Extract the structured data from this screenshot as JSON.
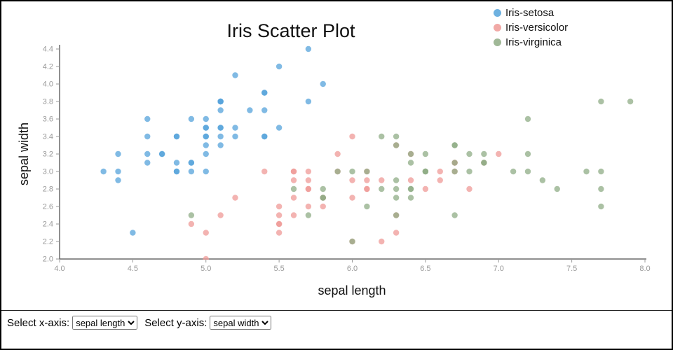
{
  "chart_data": {
    "type": "scatter",
    "title": "Iris Scatter Plot",
    "xlabel": "sepal length",
    "ylabel": "sepal width",
    "xlim": [
      4.0,
      8.0
    ],
    "ylim": [
      2.0,
      4.4
    ],
    "xticks": [
      4.0,
      4.5,
      5.0,
      5.5,
      6.0,
      6.5,
      7.0,
      7.5,
      8.0
    ],
    "yticks": [
      2.0,
      2.2,
      2.4,
      2.6,
      2.8,
      3.0,
      3.2,
      3.4,
      3.6,
      3.8,
      4.0,
      4.2,
      4.4
    ],
    "grid": false,
    "legend_position": "top-right",
    "point_opacity": 0.75,
    "series": [
      {
        "name": "Iris-setosa",
        "color": "#55a3db",
        "points": [
          [
            5.1,
            3.5
          ],
          [
            4.9,
            3.0
          ],
          [
            4.7,
            3.2
          ],
          [
            4.6,
            3.1
          ],
          [
            5.0,
            3.6
          ],
          [
            5.4,
            3.9
          ],
          [
            4.6,
            3.4
          ],
          [
            5.0,
            3.4
          ],
          [
            4.4,
            2.9
          ],
          [
            4.9,
            3.1
          ],
          [
            5.4,
            3.7
          ],
          [
            4.8,
            3.4
          ],
          [
            4.8,
            3.0
          ],
          [
            4.3,
            3.0
          ],
          [
            5.8,
            4.0
          ],
          [
            5.7,
            4.4
          ],
          [
            5.4,
            3.9
          ],
          [
            5.1,
            3.5
          ],
          [
            5.7,
            3.8
          ],
          [
            5.1,
            3.8
          ],
          [
            5.4,
            3.4
          ],
          [
            5.1,
            3.7
          ],
          [
            4.6,
            3.6
          ],
          [
            5.1,
            3.3
          ],
          [
            4.8,
            3.4
          ],
          [
            5.0,
            3.0
          ],
          [
            5.0,
            3.4
          ],
          [
            5.2,
            3.5
          ],
          [
            5.2,
            3.4
          ],
          [
            4.7,
            3.2
          ],
          [
            4.8,
            3.1
          ],
          [
            5.4,
            3.4
          ],
          [
            5.2,
            4.1
          ],
          [
            5.5,
            4.2
          ],
          [
            4.9,
            3.1
          ],
          [
            5.0,
            3.2
          ],
          [
            5.5,
            3.5
          ],
          [
            4.9,
            3.6
          ],
          [
            4.4,
            3.0
          ],
          [
            5.1,
            3.4
          ],
          [
            5.0,
            3.5
          ],
          [
            4.5,
            2.3
          ],
          [
            4.4,
            3.2
          ],
          [
            5.0,
            3.5
          ],
          [
            5.1,
            3.8
          ],
          [
            4.8,
            3.0
          ],
          [
            5.1,
            3.8
          ],
          [
            4.6,
            3.2
          ],
          [
            5.3,
            3.7
          ],
          [
            5.0,
            3.3
          ]
        ]
      },
      {
        "name": "Iris-versicolor",
        "color": "#ef9a97",
        "points": [
          [
            7.0,
            3.2
          ],
          [
            6.4,
            3.2
          ],
          [
            6.9,
            3.1
          ],
          [
            5.5,
            2.3
          ],
          [
            6.5,
            2.8
          ],
          [
            5.7,
            2.8
          ],
          [
            6.3,
            3.3
          ],
          [
            4.9,
            2.4
          ],
          [
            6.6,
            2.9
          ],
          [
            5.2,
            2.7
          ],
          [
            5.0,
            2.0
          ],
          [
            5.9,
            3.0
          ],
          [
            6.0,
            2.2
          ],
          [
            6.1,
            2.9
          ],
          [
            5.6,
            2.9
          ],
          [
            6.7,
            3.1
          ],
          [
            5.6,
            3.0
          ],
          [
            5.8,
            2.7
          ],
          [
            6.2,
            2.2
          ],
          [
            5.6,
            2.5
          ],
          [
            5.9,
            3.2
          ],
          [
            6.1,
            2.8
          ],
          [
            6.3,
            2.5
          ],
          [
            6.1,
            2.8
          ],
          [
            6.4,
            2.9
          ],
          [
            6.6,
            3.0
          ],
          [
            6.8,
            2.8
          ],
          [
            6.7,
            3.0
          ],
          [
            6.0,
            2.9
          ],
          [
            5.7,
            2.6
          ],
          [
            5.5,
            2.4
          ],
          [
            5.5,
            2.4
          ],
          [
            5.8,
            2.7
          ],
          [
            6.0,
            2.7
          ],
          [
            5.4,
            3.0
          ],
          [
            6.0,
            3.4
          ],
          [
            6.7,
            3.1
          ],
          [
            6.3,
            2.3
          ],
          [
            5.6,
            3.0
          ],
          [
            5.5,
            2.5
          ],
          [
            5.5,
            2.6
          ],
          [
            6.1,
            3.0
          ],
          [
            5.8,
            2.6
          ],
          [
            5.0,
            2.3
          ],
          [
            5.6,
            2.7
          ],
          [
            5.7,
            3.0
          ],
          [
            5.7,
            2.9
          ],
          [
            6.2,
            2.9
          ],
          [
            5.1,
            2.5
          ],
          [
            5.7,
            2.8
          ]
        ]
      },
      {
        "name": "Iris-virginica",
        "color": "#8fac85",
        "points": [
          [
            6.3,
            3.3
          ],
          [
            5.8,
            2.7
          ],
          [
            7.1,
            3.0
          ],
          [
            6.3,
            2.9
          ],
          [
            6.5,
            3.0
          ],
          [
            7.6,
            3.0
          ],
          [
            4.9,
            2.5
          ],
          [
            7.3,
            2.9
          ],
          [
            6.7,
            2.5
          ],
          [
            7.2,
            3.6
          ],
          [
            6.5,
            3.2
          ],
          [
            6.4,
            2.7
          ],
          [
            6.8,
            3.0
          ],
          [
            5.7,
            2.5
          ],
          [
            5.8,
            2.8
          ],
          [
            6.4,
            3.2
          ],
          [
            6.5,
            3.0
          ],
          [
            7.7,
            3.8
          ],
          [
            7.7,
            2.6
          ],
          [
            6.0,
            2.2
          ],
          [
            6.9,
            3.2
          ],
          [
            5.6,
            2.8
          ],
          [
            7.7,
            2.8
          ],
          [
            6.3,
            2.7
          ],
          [
            6.7,
            3.3
          ],
          [
            7.2,
            3.2
          ],
          [
            6.2,
            2.8
          ],
          [
            6.1,
            3.0
          ],
          [
            6.4,
            2.8
          ],
          [
            7.2,
            3.0
          ],
          [
            7.4,
            2.8
          ],
          [
            7.9,
            3.8
          ],
          [
            6.4,
            2.8
          ],
          [
            6.3,
            2.8
          ],
          [
            6.1,
            2.6
          ],
          [
            7.7,
            3.0
          ],
          [
            6.3,
            3.4
          ],
          [
            6.4,
            3.1
          ],
          [
            6.0,
            3.0
          ],
          [
            6.9,
            3.1
          ],
          [
            6.7,
            3.1
          ],
          [
            6.9,
            3.1
          ],
          [
            5.8,
            2.7
          ],
          [
            6.8,
            3.2
          ],
          [
            6.7,
            3.3
          ],
          [
            6.7,
            3.0
          ],
          [
            6.3,
            2.5
          ],
          [
            6.5,
            3.0
          ],
          [
            6.2,
            3.4
          ],
          [
            5.9,
            3.0
          ]
        ]
      }
    ]
  },
  "controls": {
    "x_axis_label": "Select x-axis:",
    "x_axis_value": "sepal length",
    "y_axis_label": "Select y-axis:",
    "y_axis_value": "sepal width"
  }
}
